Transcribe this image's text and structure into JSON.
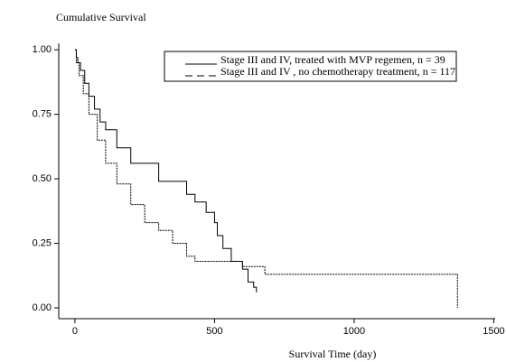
{
  "chart_data": {
    "type": "step",
    "ylabel": "Cumulative Survival",
    "xlabel": "Survival Time (day)",
    "xlim": [
      -58,
      1505
    ],
    "ylim": [
      -0.042,
      1.025
    ],
    "xticks": [
      0,
      500,
      1000,
      1500
    ],
    "yticks": [
      {
        "value": 0,
        "label": "0.00"
      },
      {
        "value": 0.25,
        "label": "0.25"
      },
      {
        "value": 0.5,
        "label": "0.50"
      },
      {
        "value": 0.75,
        "label": "0.75"
      },
      {
        "value": 1,
        "label": "1.00"
      }
    ],
    "series": [
      {
        "name": "Stage III and IV, treated with MVP regemen, n = 39",
        "color": "#000000",
        "line_style": "solid",
        "x": [
          0,
          5,
          10,
          20,
          35,
          50,
          70,
          90,
          110,
          150,
          200,
          300,
          400,
          430,
          470,
          500,
          510,
          530,
          560,
          600,
          620,
          640,
          650
        ],
        "y": [
          1,
          0.97,
          0.95,
          0.92,
          0.87,
          0.82,
          0.77,
          0.72,
          0.69,
          0.62,
          0.56,
          0.49,
          0.44,
          0.41,
          0.37,
          0.33,
          0.28,
          0.23,
          0.18,
          0.15,
          0.1,
          0.08,
          0.06
        ]
      },
      {
        "name": "Stage III and IV , no chemotherapy treatment, n = 117",
        "color": "#000000",
        "line_style": "dashed",
        "x": [
          0,
          5,
          15,
          30,
          50,
          80,
          110,
          150,
          200,
          250,
          300,
          350,
          400,
          430,
          600,
          680,
          1370,
          1370
        ],
        "y": [
          1,
          0.95,
          0.9,
          0.83,
          0.75,
          0.65,
          0.56,
          0.48,
          0.4,
          0.33,
          0.3,
          0.25,
          0.2,
          0.18,
          0.16,
          0.13,
          0.13,
          0
        ]
      }
    ]
  }
}
